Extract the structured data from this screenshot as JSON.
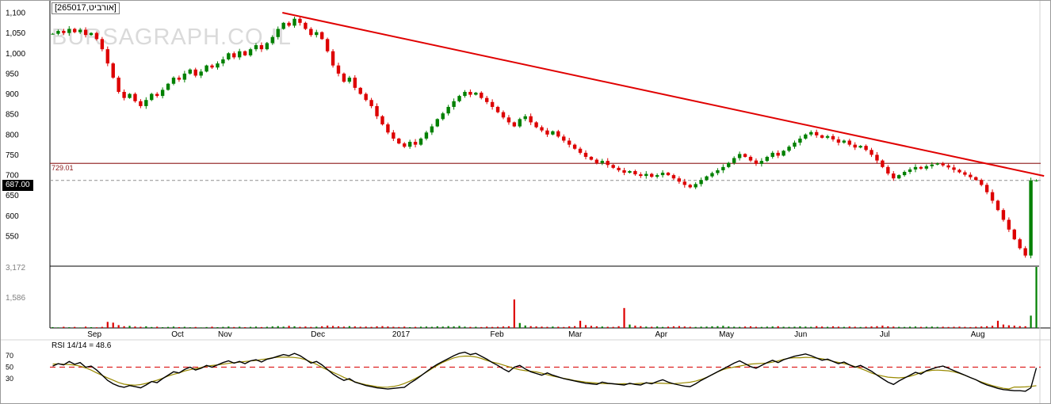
{
  "watermark": "BURSAGRAPH.CO.IL",
  "chart_data": {
    "type": "candlestick",
    "title": "[265017,אורביט]",
    "price_tag_label": "687.00",
    "resistance_label": "729.01",
    "last_price": 687.0,
    "resistance_line": 729.01,
    "current_price_line": 687.0,
    "price_axis": {
      "min": 480,
      "max": 1113,
      "grid": false
    },
    "price_ticks": [
      {
        "v": 1100,
        "label": "1,100"
      },
      {
        "v": 1050,
        "label": "1,050"
      },
      {
        "v": 1000,
        "label": "1,000"
      },
      {
        "v": 950,
        "label": "950"
      },
      {
        "v": 900,
        "label": "900"
      },
      {
        "v": 850,
        "label": "850"
      },
      {
        "v": 800,
        "label": "800"
      },
      {
        "v": 750,
        "label": "750"
      },
      {
        "v": 700,
        "label": "700"
      },
      {
        "v": 650,
        "label": "650"
      },
      {
        "v": 600,
        "label": "600"
      },
      {
        "v": 550,
        "label": "550"
      }
    ],
    "volume_axis": {
      "max": 3400,
      "grid": false
    },
    "volume_ticks": [
      {
        "v": 3172,
        "label": "3,172"
      },
      {
        "v": 1586,
        "label": "1,586"
      }
    ],
    "months": [
      {
        "label": "Sep",
        "x": 0.045
      },
      {
        "label": "Oct",
        "x": 0.129
      },
      {
        "label": "Nov",
        "x": 0.177
      },
      {
        "label": "Dec",
        "x": 0.271
      },
      {
        "label": "2017",
        "x": 0.355
      },
      {
        "label": "Feb",
        "x": 0.452
      },
      {
        "label": "Mar",
        "x": 0.531
      },
      {
        "label": "Apr",
        "x": 0.618
      },
      {
        "label": "May",
        "x": 0.684
      },
      {
        "label": "Jun",
        "x": 0.759
      },
      {
        "label": "Jul",
        "x": 0.844
      },
      {
        "label": "Aug",
        "x": 0.938
      }
    ],
    "trendline": {
      "x1": 0.235,
      "p1": 1100,
      "x2": 1.005,
      "p2": 698
    },
    "closes": [
      1048,
      1055,
      1050,
      1060,
      1052,
      1058,
      1045,
      1050,
      1035,
      1010,
      975,
      940,
      905,
      890,
      900,
      882,
      870,
      885,
      900,
      895,
      910,
      925,
      940,
      935,
      950,
      960,
      945,
      955,
      970,
      965,
      975,
      985,
      1000,
      990,
      1005,
      995,
      1010,
      1020,
      1010,
      1025,
      1040,
      1060,
      1075,
      1068,
      1085,
      1075,
      1060,
      1045,
      1052,
      1035,
      1005,
      970,
      950,
      930,
      940,
      915,
      900,
      885,
      870,
      845,
      825,
      805,
      790,
      778,
      770,
      782,
      775,
      790,
      805,
      820,
      838,
      852,
      868,
      882,
      895,
      905,
      898,
      903,
      890,
      880,
      868,
      855,
      842,
      830,
      820,
      838,
      845,
      830,
      818,
      810,
      800,
      808,
      795,
      785,
      775,
      765,
      755,
      745,
      738,
      730,
      735,
      725,
      718,
      712,
      706,
      710,
      702,
      698,
      703,
      696,
      700,
      706,
      700,
      692,
      684,
      676,
      670,
      678,
      688,
      697,
      705,
      712,
      720,
      730,
      742,
      752,
      745,
      736,
      728,
      735,
      745,
      755,
      748,
      760,
      770,
      780,
      790,
      800,
      806,
      798,
      792,
      796,
      788,
      780,
      785,
      775,
      768,
      772,
      762,
      750,
      736,
      720,
      704,
      692,
      700,
      708,
      714,
      720,
      716,
      722,
      726,
      729,
      724,
      719,
      713,
      707,
      701,
      695,
      688,
      676,
      658,
      637,
      614,
      590,
      566,
      542,
      520,
      502,
      687,
      687
    ],
    "volumes": [
      45,
      30,
      62,
      38,
      55,
      28,
      70,
      42,
      35,
      58,
      320,
      280,
      150,
      92,
      110,
      75,
      62,
      85,
      50,
      66,
      40,
      56,
      72,
      45,
      60,
      38,
      52,
      30,
      48,
      66,
      42,
      58,
      76,
      50,
      66,
      44,
      58,
      72,
      48,
      62,
      80,
      95,
      70,
      112,
      85,
      60,
      76,
      55,
      68,
      90,
      122,
      105,
      88,
      70,
      95,
      80,
      65,
      72,
      58,
      86,
      96,
      78,
      64,
      52,
      70,
      45,
      58,
      66,
      74,
      60,
      88,
      72,
      96,
      80,
      105,
      68,
      56,
      62,
      48,
      70,
      55,
      64,
      78,
      90,
      1500,
      260,
      130,
      95,
      80,
      70,
      60,
      74,
      66,
      52,
      84,
      96,
      380,
      150,
      110,
      88,
      76,
      64,
      58,
      92,
      1050,
      180,
      120,
      95,
      70,
      64,
      78,
      56,
      70,
      84,
      98,
      76,
      62,
      54,
      68,
      72,
      86,
      94,
      112,
      80,
      66,
      58,
      74,
      88,
      62,
      56,
      70,
      78,
      92,
      64,
      58,
      66,
      84,
      72,
      60,
      96,
      74,
      62,
      88,
      70,
      58,
      76,
      64,
      52,
      66,
      80,
      94,
      122,
      88,
      72,
      60,
      54,
      68,
      76,
      58,
      64,
      72,
      58,
      66,
      54,
      62,
      70,
      58,
      48,
      66,
      78,
      92,
      112,
      380,
      180,
      140,
      120,
      96,
      90,
      650,
      3400
    ],
    "rsi": {
      "label": "RSI 14/14 = 48.6",
      "period": "14/14",
      "value": 48.6,
      "ticks": [
        70,
        50,
        30
      ],
      "midline": 50,
      "values": [
        52,
        56,
        54,
        60,
        55,
        58,
        50,
        52,
        45,
        36,
        27,
        21,
        17,
        15,
        18,
        16,
        14,
        19,
        25,
        23,
        30,
        36,
        42,
        40,
        46,
        50,
        45,
        48,
        53,
        50,
        54,
        58,
        61,
        57,
        60,
        56,
        61,
        63,
        59,
        64,
        66,
        69,
        72,
        70,
        74,
        70,
        64,
        57,
        60,
        54,
        46,
        38,
        32,
        27,
        30,
        24,
        21,
        18,
        16,
        14,
        13,
        12,
        13,
        14,
        15,
        22,
        28,
        35,
        42,
        49,
        55,
        60,
        65,
        70,
        74,
        76,
        72,
        74,
        69,
        64,
        58,
        53,
        47,
        42,
        50,
        53,
        47,
        42,
        39,
        36,
        40,
        36,
        33,
        30,
        28,
        26,
        24,
        22,
        21,
        20,
        24,
        22,
        21,
        20,
        19,
        22,
        20,
        19,
        23,
        21,
        25,
        28,
        24,
        21,
        19,
        17,
        16,
        21,
        27,
        32,
        37,
        42,
        47,
        52,
        57,
        61,
        56,
        51,
        48,
        53,
        58,
        62,
        58,
        63,
        66,
        69,
        71,
        73,
        70,
        66,
        62,
        64,
        60,
        56,
        59,
        54,
        50,
        53,
        48,
        43,
        36,
        30,
        24,
        20,
        26,
        31,
        36,
        41,
        38,
        44,
        47,
        50,
        52,
        48,
        44,
        40,
        36,
        32,
        28,
        23,
        19,
        16,
        13,
        11,
        10,
        9,
        9,
        8,
        14,
        48.6
      ]
    },
    "colors": {
      "up": "#008000",
      "down": "#dd0000",
      "trend": "#e00000",
      "resistance": "#993333",
      "dashed": "#909090",
      "rsi_line": "#000000",
      "rsi_signal": "#998a00",
      "rsi_mid": "#dd2222",
      "watermark": "#dadada"
    }
  }
}
